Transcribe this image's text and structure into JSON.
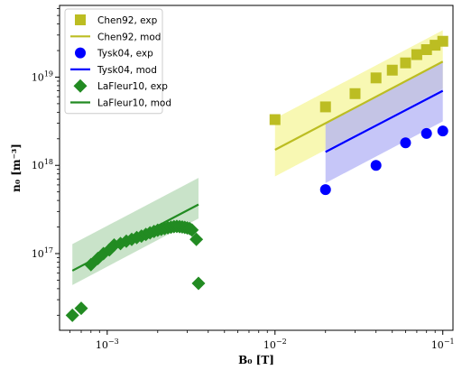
{
  "chart_data": {
    "type": "scatter",
    "xlabel": "B₀ [T]",
    "ylabel": "n₀ [m⁻³]",
    "xscale": "log",
    "yscale": "log",
    "xlim": [
      0.00052,
      0.115
    ],
    "ylim": [
      1.35e+16,
      6.5e+19
    ],
    "x_ticks": [
      {
        "value": 0.001,
        "label_base": "10",
        "label_exp": "−3"
      },
      {
        "value": 0.01,
        "label_base": "10",
        "label_exp": "−2"
      },
      {
        "value": 0.1,
        "label_base": "10",
        "label_exp": "−1"
      }
    ],
    "y_ticks": [
      {
        "value": 1e+17,
        "label_base": "10",
        "label_exp": "17"
      },
      {
        "value": 1e+18,
        "label_base": "10",
        "label_exp": "18"
      },
      {
        "value": 1e+19,
        "label_base": "10",
        "label_exp": "19"
      }
    ],
    "grid": false,
    "legend_position": "top-left",
    "series": [
      {
        "name": "Chen92, exp",
        "kind": "marker",
        "marker": "square",
        "color": "#bcbd22",
        "x": [
          0.01,
          0.02,
          0.03,
          0.04,
          0.05,
          0.06,
          0.07,
          0.08,
          0.09,
          0.1
        ],
        "y": [
          3.3e+18,
          4.6e+18,
          6.5e+18,
          9.8e+18,
          1.2e+19,
          1.45e+19,
          1.8e+19,
          2.05e+19,
          2.3e+19,
          2.55e+19
        ]
      },
      {
        "name": "Chen92, mod",
        "kind": "line",
        "color": "#bcbd22",
        "band_color": "#f5f59a",
        "x": [
          0.01,
          0.1
        ],
        "y": [
          1.5e+18,
          1.5e+19
        ],
        "band_lower": [
          7.5e+17,
          7.5e+18
        ],
        "band_upper": [
          3.4e+18,
          3.4e+19
        ]
      },
      {
        "name": "Tysk04, exp",
        "kind": "marker",
        "marker": "circle",
        "color": "#0000ff",
        "x": [
          0.02,
          0.04,
          0.06,
          0.08,
          0.1
        ],
        "y": [
          5.3e+17,
          1e+18,
          1.8e+18,
          2.3e+18,
          2.45e+18
        ]
      },
      {
        "name": "Tysk04, mod",
        "kind": "line",
        "color": "#0000ff",
        "band_color": "#b3b3f5",
        "x": [
          0.02,
          0.1
        ],
        "y": [
          1.42e+18,
          7e+18
        ],
        "band_lower": [
          6.3e+17,
          3.15e+18
        ],
        "band_upper": [
          3e+18,
          1.5e+19
        ]
      },
      {
        "name": "LaFleur10, exp",
        "kind": "marker",
        "marker": "diamond",
        "color": "#228b22",
        "x": [
          0.00062,
          0.0007,
          0.0008,
          0.00088,
          0.00095,
          0.00103,
          0.0011,
          0.0012,
          0.0013,
          0.0014,
          0.0015,
          0.0016,
          0.0017,
          0.0018,
          0.0019,
          0.002,
          0.0021,
          0.0022,
          0.0023,
          0.0024,
          0.0025,
          0.0026,
          0.0027,
          0.0028,
          0.0029,
          0.003,
          0.0031,
          0.0032,
          0.0034,
          0.0035
        ],
        "y": [
          2e+16,
          2.4e+16,
          7.5e+16,
          8.8e+16,
          1e+17,
          1.1e+17,
          1.25e+17,
          1.3e+17,
          1.38e+17,
          1.45e+17,
          1.52e+17,
          1.58e+17,
          1.65e+17,
          1.72e+17,
          1.78e+17,
          1.84e+17,
          1.88e+17,
          1.92e+17,
          1.96e+17,
          1.99e+17,
          2.02e+17,
          2.03e+17,
          2.02e+17,
          2e+17,
          1.98e+17,
          1.95e+17,
          1.92e+17,
          1.85e+17,
          1.45e+17,
          4.6e+16
        ]
      },
      {
        "name": "LaFleur10, mod",
        "kind": "line",
        "color": "#228b22",
        "band_color": "#b7dab7",
        "x": [
          0.00062,
          0.0035
        ],
        "y": [
          6.4e+16,
          3.6e+17
        ],
        "band_lower": [
          4.4e+16,
          2.5e+17
        ],
        "band_upper": [
          1.28e+17,
          7.2e+17
        ]
      }
    ]
  }
}
